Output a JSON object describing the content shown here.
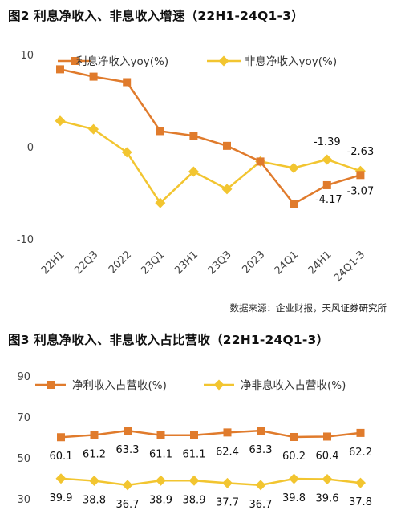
{
  "chart_data": [
    {
      "type": "line",
      "title": "图2 利息净收入、非息收入增速（22H1-24Q1-3）",
      "categories": [
        "22H1",
        "22Q3",
        "2022",
        "23Q1",
        "23H1",
        "23Q3",
        "2023",
        "24Q1",
        "24H1",
        "24Q1-3"
      ],
      "ylim": [
        -10,
        10
      ],
      "yticks": [
        "10",
        "0",
        "-10"
      ],
      "legend_position": "top",
      "series": [
        {
          "name": "利息净收入yoy(%)",
          "color": "#e07b2c",
          "marker": "square",
          "values": [
            8.4,
            7.6,
            7.0,
            1.7,
            1.2,
            0.1,
            -1.6,
            -6.2,
            -4.17,
            -3.07
          ],
          "labels": [
            null,
            null,
            null,
            null,
            null,
            null,
            null,
            null,
            "-4.17",
            "-3.07"
          ]
        },
        {
          "name": "非息净收入yoy(%)",
          "color": "#f2c530",
          "marker": "diamond",
          "values": [
            2.8,
            1.9,
            -0.6,
            -6.1,
            -2.7,
            -4.6,
            -1.6,
            -2.3,
            -1.39,
            -2.63
          ],
          "labels": [
            null,
            null,
            null,
            null,
            null,
            null,
            null,
            null,
            "-1.39",
            "-2.63"
          ]
        }
      ]
    },
    {
      "type": "line",
      "title": "图3 利息净收入、非息收入占比营收（22H1-24Q1-3）",
      "categories": [
        "22H1",
        "22Q3",
        "2022",
        "23Q1",
        "23H1",
        "23Q3",
        "2023",
        "24Q1",
        "24H1",
        "24Q1-3"
      ],
      "ylim": [
        30,
        90
      ],
      "yticks": [
        "90",
        "70",
        "50",
        "30"
      ],
      "legend_position": "top",
      "series": [
        {
          "name": "净利收入占营收(%)",
          "color": "#e07b2c",
          "marker": "square",
          "values": [
            60.1,
            61.2,
            63.3,
            61.1,
            61.1,
            62.4,
            63.3,
            60.2,
            60.4,
            62.2
          ],
          "labels": [
            "60.1",
            "61.2",
            "63.3",
            "61.1",
            "61.1",
            "62.4",
            "63.3",
            "60.2",
            "60.4",
            "62.2"
          ]
        },
        {
          "name": "净非息收入占营收(%)",
          "color": "#f2c530",
          "marker": "diamond",
          "values": [
            39.9,
            38.8,
            36.7,
            38.9,
            38.9,
            37.7,
            36.7,
            39.8,
            39.6,
            37.8
          ],
          "labels": [
            "39.9",
            "38.8",
            "36.7",
            "38.9",
            "38.9",
            "37.7",
            "36.7",
            "39.8",
            "39.6",
            "37.8"
          ]
        }
      ]
    }
  ],
  "source": "数据来源：企业财报，天风证券研究所"
}
